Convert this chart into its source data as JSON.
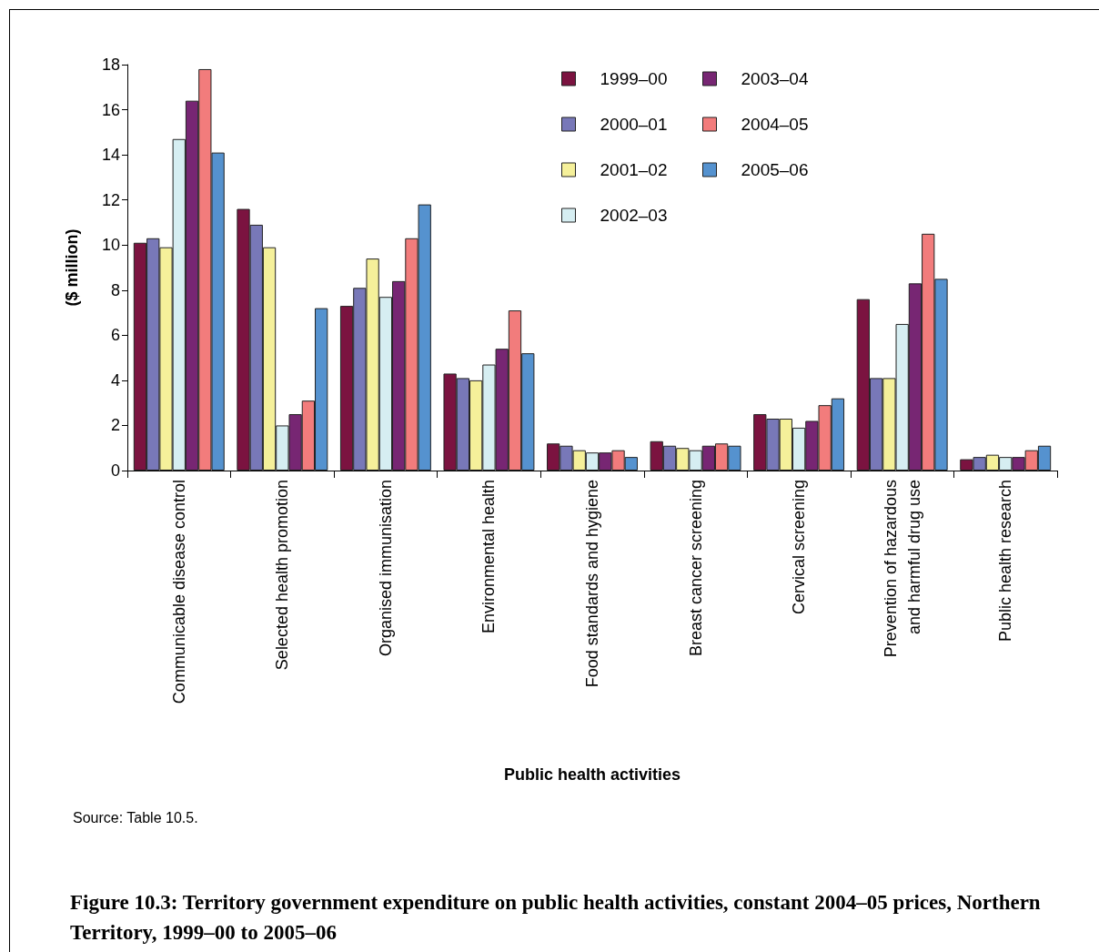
{
  "chart_data": {
    "type": "bar",
    "title": "Figure 10.3: Territory government expenditure on public health activities, constant 2004–05 prices, Northern Territory, 1999–00 to 2005–06",
    "xlabel": "Public health activities",
    "ylabel": "($ million)",
    "annotations": [
      "Source: Table 10.5."
    ],
    "categories": [
      "Communicable disease control",
      "Selected health promotion",
      "Organised immunisation",
      "Environmental health",
      "Food standards and hygiene",
      "Breast cancer screening",
      "Cervical screening",
      "Prevention of hazardous\nand harmful drug use",
      "Public health research"
    ],
    "series": [
      {
        "name": "1999–00",
        "color": "#7b1340",
        "values": [
          10.1,
          11.6,
          7.3,
          4.3,
          1.2,
          1.3,
          2.5,
          7.6,
          0.5
        ]
      },
      {
        "name": "2000–01",
        "color": "#7878b8",
        "values": [
          10.3,
          10.9,
          8.1,
          4.1,
          1.1,
          1.1,
          2.3,
          4.1,
          0.6
        ]
      },
      {
        "name": "2001–02",
        "color": "#f5f09a",
        "values": [
          9.9,
          9.9,
          9.4,
          4.0,
          0.9,
          1.0,
          2.3,
          4.1,
          0.7
        ]
      },
      {
        "name": "2002–03",
        "color": "#d6eef2",
        "values": [
          14.7,
          2.0,
          7.7,
          4.7,
          0.8,
          0.9,
          1.9,
          6.5,
          0.6
        ]
      },
      {
        "name": "2003–04",
        "color": "#772673",
        "values": [
          16.4,
          2.5,
          8.4,
          5.4,
          0.8,
          1.1,
          2.2,
          8.3,
          0.6
        ]
      },
      {
        "name": "2004–05",
        "color": "#f27c7c",
        "values": [
          17.8,
          3.1,
          10.3,
          7.1,
          0.9,
          1.2,
          2.9,
          10.5,
          0.9
        ]
      },
      {
        "name": "2005–06",
        "color": "#5592cf",
        "values": [
          14.1,
          7.2,
          11.8,
          5.2,
          0.6,
          1.1,
          3.2,
          8.5,
          1.1
        ]
      }
    ],
    "ylim": [
      0,
      18
    ],
    "yticks": [
      0,
      2,
      4,
      6,
      8,
      10,
      12,
      14,
      16,
      18
    ],
    "grid": false,
    "legend": "top right"
  }
}
